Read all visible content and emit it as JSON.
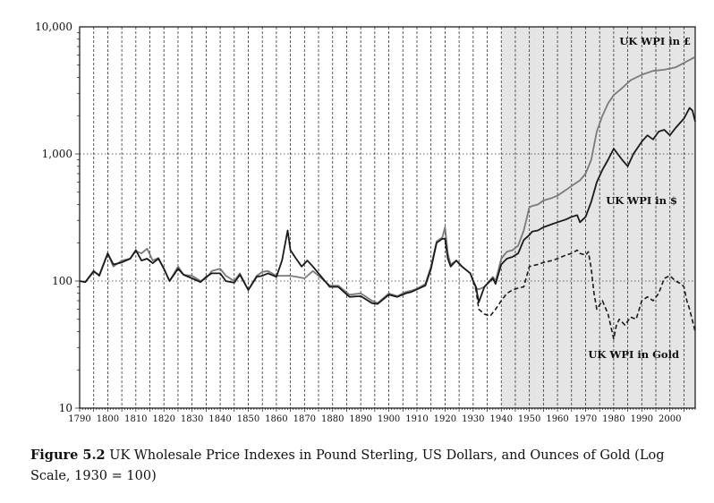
{
  "chart_data": {
    "type": "line",
    "y_scale": "log",
    "ylim": [
      10,
      10000
    ],
    "xlim": [
      1790,
      2009
    ],
    "grid": "dashed vertical every 5 years, dotted horizontal at decades",
    "shaded_region": {
      "x_from": 1940,
      "x_to": 2009,
      "color": "#e5e5e5"
    },
    "x_ticks": [
      1790,
      1800,
      1810,
      1820,
      1830,
      1840,
      1850,
      1860,
      1870,
      1880,
      1890,
      1900,
      1910,
      1920,
      1930,
      1940,
      1950,
      1960,
      1970,
      1980,
      1990,
      2000
    ],
    "x_tick_labels": [
      "1790",
      "1800",
      "1810",
      "1820",
      "1830",
      "1840",
      "1850",
      "1860",
      "1870",
      "1880",
      "1890",
      "1900",
      "1910",
      "1920",
      "1930",
      "1940",
      "1950",
      "1960",
      "1970",
      "1980",
      "1990",
      "2000"
    ],
    "y_ticks": [
      10,
      100,
      1000,
      10000
    ],
    "y_tick_labels": [
      "10",
      "100",
      "1,000",
      "10,000"
    ],
    "series": [
      {
        "name": "UK WPI in £",
        "color": "#7a7a7a",
        "style": "solid",
        "label_position": "top-right",
        "points": [
          [
            1790,
            100
          ],
          [
            1792,
            98
          ],
          [
            1795,
            118
          ],
          [
            1797,
            112
          ],
          [
            1800,
            165
          ],
          [
            1802,
            130
          ],
          [
            1805,
            145
          ],
          [
            1808,
            150
          ],
          [
            1810,
            172
          ],
          [
            1812,
            165
          ],
          [
            1814,
            180
          ],
          [
            1816,
            145
          ],
          [
            1818,
            152
          ],
          [
            1820,
            125
          ],
          [
            1822,
            100
          ],
          [
            1825,
            130
          ],
          [
            1827,
            112
          ],
          [
            1830,
            110
          ],
          [
            1833,
            100
          ],
          [
            1835,
            105
          ],
          [
            1837,
            120
          ],
          [
            1840,
            125
          ],
          [
            1842,
            110
          ],
          [
            1845,
            100
          ],
          [
            1847,
            115
          ],
          [
            1850,
            85
          ],
          [
            1853,
            110
          ],
          [
            1855,
            118
          ],
          [
            1857,
            120
          ],
          [
            1860,
            110
          ],
          [
            1865,
            110
          ],
          [
            1868,
            107
          ],
          [
            1870,
            105
          ],
          [
            1873,
            120
          ],
          [
            1875,
            110
          ],
          [
            1879,
            92
          ],
          [
            1882,
            92
          ],
          [
            1886,
            78
          ],
          [
            1890,
            80
          ],
          [
            1894,
            70
          ],
          [
            1896,
            67
          ],
          [
            1900,
            80
          ],
          [
            1903,
            76
          ],
          [
            1906,
            82
          ],
          [
            1908,
            84
          ],
          [
            1910,
            87
          ],
          [
            1913,
            95
          ],
          [
            1915,
            130
          ],
          [
            1917,
            205
          ],
          [
            1919,
            220
          ],
          [
            1920,
            265
          ],
          [
            1921,
            165
          ],
          [
            1922,
            135
          ],
          [
            1924,
            145
          ],
          [
            1926,
            130
          ],
          [
            1929,
            115
          ],
          [
            1930,
            100
          ],
          [
            1931,
            88
          ],
          [
            1932,
            86
          ],
          [
            1934,
            90
          ],
          [
            1937,
            108
          ],
          [
            1938,
            100
          ],
          [
            1940,
            150
          ],
          [
            1942,
            170
          ],
          [
            1944,
            175
          ],
          [
            1946,
            190
          ],
          [
            1948,
            250
          ],
          [
            1950,
            380
          ],
          [
            1951,
            390
          ],
          [
            1953,
            400
          ],
          [
            1955,
            430
          ],
          [
            1958,
            450
          ],
          [
            1960,
            470
          ],
          [
            1963,
            520
          ],
          [
            1965,
            560
          ],
          [
            1968,
            620
          ],
          [
            1970,
            700
          ],
          [
            1972,
            900
          ],
          [
            1974,
            1500
          ],
          [
            1976,
            2000
          ],
          [
            1978,
            2500
          ],
          [
            1980,
            2900
          ],
          [
            1983,
            3300
          ],
          [
            1986,
            3800
          ],
          [
            1990,
            4200
          ],
          [
            1994,
            4500
          ],
          [
            1998,
            4600
          ],
          [
            2002,
            4800
          ],
          [
            2005,
            5200
          ],
          [
            2009,
            5800
          ]
        ]
      },
      {
        "name": "UK WPI in $",
        "color": "#1a1a1a",
        "style": "solid",
        "label_position": "right-middle",
        "points": [
          [
            1790,
            100
          ],
          [
            1792,
            98
          ],
          [
            1795,
            120
          ],
          [
            1797,
            110
          ],
          [
            1800,
            165
          ],
          [
            1802,
            135
          ],
          [
            1805,
            140
          ],
          [
            1808,
            150
          ],
          [
            1810,
            175
          ],
          [
            1812,
            145
          ],
          [
            1814,
            150
          ],
          [
            1816,
            138
          ],
          [
            1818,
            150
          ],
          [
            1820,
            125
          ],
          [
            1822,
            100
          ],
          [
            1825,
            125
          ],
          [
            1827,
            112
          ],
          [
            1830,
            105
          ],
          [
            1833,
            98
          ],
          [
            1835,
            108
          ],
          [
            1837,
            115
          ],
          [
            1840,
            115
          ],
          [
            1842,
            100
          ],
          [
            1845,
            97
          ],
          [
            1847,
            112
          ],
          [
            1850,
            85
          ],
          [
            1853,
            108
          ],
          [
            1855,
            110
          ],
          [
            1857,
            115
          ],
          [
            1860,
            108
          ],
          [
            1862,
            145
          ],
          [
            1864,
            250
          ],
          [
            1865,
            175
          ],
          [
            1867,
            150
          ],
          [
            1869,
            130
          ],
          [
            1871,
            145
          ],
          [
            1873,
            130
          ],
          [
            1875,
            115
          ],
          [
            1879,
            90
          ],
          [
            1882,
            90
          ],
          [
            1886,
            75
          ],
          [
            1890,
            76
          ],
          [
            1894,
            67
          ],
          [
            1896,
            66
          ],
          [
            1900,
            78
          ],
          [
            1903,
            75
          ],
          [
            1906,
            80
          ],
          [
            1908,
            82
          ],
          [
            1910,
            86
          ],
          [
            1913,
            92
          ],
          [
            1915,
            125
          ],
          [
            1917,
            200
          ],
          [
            1919,
            215
          ],
          [
            1920,
            215
          ],
          [
            1921,
            150
          ],
          [
            1922,
            130
          ],
          [
            1924,
            145
          ],
          [
            1926,
            130
          ],
          [
            1929,
            115
          ],
          [
            1930,
            100
          ],
          [
            1931,
            90
          ],
          [
            1932,
            68
          ],
          [
            1934,
            90
          ],
          [
            1937,
            105
          ],
          [
            1938,
            95
          ],
          [
            1940,
            135
          ],
          [
            1942,
            150
          ],
          [
            1944,
            155
          ],
          [
            1946,
            165
          ],
          [
            1948,
            210
          ],
          [
            1950,
            230
          ],
          [
            1951,
            245
          ],
          [
            1953,
            250
          ],
          [
            1955,
            265
          ],
          [
            1958,
            280
          ],
          [
            1960,
            290
          ],
          [
            1963,
            305
          ],
          [
            1965,
            320
          ],
          [
            1967,
            330
          ],
          [
            1968,
            290
          ],
          [
            1970,
            320
          ],
          [
            1972,
            420
          ],
          [
            1974,
            600
          ],
          [
            1976,
            750
          ],
          [
            1978,
            900
          ],
          [
            1980,
            1100
          ],
          [
            1983,
            900
          ],
          [
            1985,
            800
          ],
          [
            1987,
            1000
          ],
          [
            1990,
            1250
          ],
          [
            1992,
            1400
          ],
          [
            1994,
            1300
          ],
          [
            1996,
            1500
          ],
          [
            1998,
            1550
          ],
          [
            2000,
            1400
          ],
          [
            2002,
            1600
          ],
          [
            2005,
            1900
          ],
          [
            2007,
            2300
          ],
          [
            2008,
            2200
          ],
          [
            2009,
            1800
          ]
        ]
      },
      {
        "name": "UK WPI in Gold",
        "color": "#1a1a1a",
        "style": "dashed",
        "label_position": "bottom-right",
        "points": [
          [
            1930,
            100
          ],
          [
            1931,
            85
          ],
          [
            1932,
            60
          ],
          [
            1934,
            55
          ],
          [
            1936,
            53
          ],
          [
            1938,
            60
          ],
          [
            1940,
            70
          ],
          [
            1942,
            80
          ],
          [
            1944,
            85
          ],
          [
            1946,
            88
          ],
          [
            1948,
            90
          ],
          [
            1950,
            130
          ],
          [
            1953,
            135
          ],
          [
            1955,
            140
          ],
          [
            1958,
            145
          ],
          [
            1960,
            150
          ],
          [
            1963,
            160
          ],
          [
            1965,
            165
          ],
          [
            1967,
            175
          ],
          [
            1968,
            165
          ],
          [
            1970,
            160
          ],
          [
            1971,
            170
          ],
          [
            1972,
            125
          ],
          [
            1973,
            80
          ],
          [
            1974,
            60
          ],
          [
            1976,
            70
          ],
          [
            1978,
            55
          ],
          [
            1980,
            35
          ],
          [
            1981,
            45
          ],
          [
            1982,
            50
          ],
          [
            1984,
            45
          ],
          [
            1986,
            52
          ],
          [
            1988,
            50
          ],
          [
            1990,
            70
          ],
          [
            1992,
            75
          ],
          [
            1994,
            70
          ],
          [
            1996,
            80
          ],
          [
            1998,
            105
          ],
          [
            2000,
            110
          ],
          [
            2002,
            100
          ],
          [
            2004,
            95
          ],
          [
            2005,
            90
          ],
          [
            2006,
            70
          ],
          [
            2007,
            60
          ],
          [
            2009,
            40
          ]
        ]
      }
    ]
  },
  "caption": {
    "figure_number": "Figure 5.2",
    "text": "UK Wholesale Price Indexes in Pound Sterling, US Dollars, and Ounces of Gold (Log Scale, 1930 = 100)"
  }
}
